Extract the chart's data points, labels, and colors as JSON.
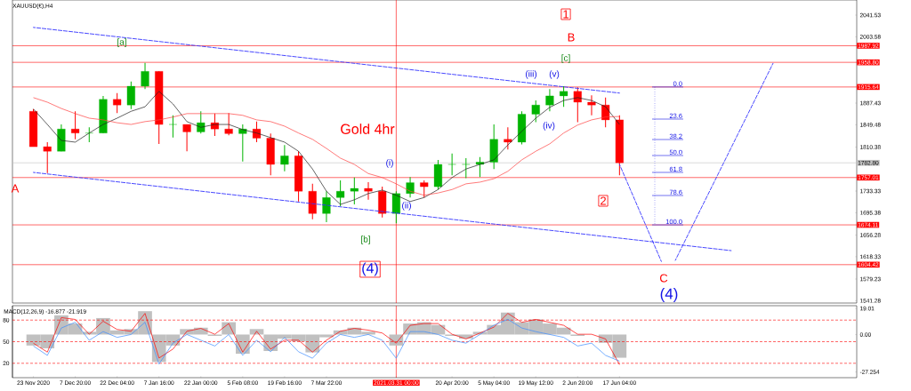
{
  "chart_data": [
    {
      "type": "candlestick",
      "title": "XAUUSD(€),H4",
      "categories": [
        "23 Nov 2020",
        null,
        null,
        "7 Dec 20:00",
        null,
        null,
        "22 Dec 04:00",
        null,
        null,
        "7 Jan 16:00",
        null,
        null,
        "22 Jan 00:00",
        null,
        null,
        "5 Feb 08:00",
        null,
        null,
        "19 Feb 16:00",
        null,
        null,
        "7 Mar 22:00",
        null,
        null,
        null,
        null,
        "2021.03.31 00:00",
        null,
        null,
        null,
        "20 Apr 20:00",
        null,
        null,
        "5 May 04:00",
        null,
        null,
        "19 May 12:00",
        null,
        null,
        "2 Jun 20:00",
        null,
        null,
        "17 Jun 04:00",
        null,
        null,
        null,
        null,
        null,
        null,
        null,
        null,
        null,
        null,
        null,
        null,
        null,
        null,
        null,
        null
      ],
      "ohlc": [
        [
          1873,
          1877,
          1811,
          1811
        ],
        [
          1811,
          1819,
          1765,
          1803
        ],
        [
          1803,
          1850,
          1803,
          1842
        ],
        [
          1842,
          1873,
          1824,
          1835
        ],
        [
          1835,
          1845,
          1819,
          1835
        ],
        [
          1835,
          1900,
          1835,
          1894
        ],
        [
          1894,
          1905,
          1870,
          1884
        ],
        [
          1884,
          1925,
          1877,
          1917
        ],
        [
          1917,
          1958,
          1912,
          1943
        ],
        [
          1943,
          1943,
          1816,
          1850
        ],
        [
          1850,
          1866,
          1827,
          1850
        ],
        [
          1850,
          1850,
          1803,
          1837
        ],
        [
          1837,
          1873,
          1834,
          1853
        ],
        [
          1853,
          1869,
          1830,
          1842
        ],
        [
          1842,
          1870,
          1831,
          1834
        ],
        [
          1834,
          1850,
          1785,
          1842
        ],
        [
          1842,
          1855,
          1819,
          1826
        ],
        [
          1826,
          1834,
          1761,
          1780
        ],
        [
          1780,
          1814,
          1768,
          1795
        ],
        [
          1795,
          1803,
          1715,
          1733
        ],
        [
          1733,
          1746,
          1684,
          1694
        ],
        [
          1694,
          1733,
          1679,
          1722
        ],
        [
          1722,
          1752,
          1707,
          1733
        ],
        [
          1733,
          1757,
          1710,
          1738
        ],
        [
          1738,
          1749,
          1718,
          1733
        ],
        [
          1733,
          1741,
          1687,
          1694
        ],
        [
          1694,
          1733,
          1677,
          1729
        ],
        [
          1729,
          1758,
          1722,
          1748
        ],
        [
          1748,
          1752,
          1722,
          1741
        ],
        [
          1741,
          1788,
          1736,
          1780
        ],
        [
          1780,
          1799,
          1761,
          1780
        ],
        [
          1780,
          1791,
          1756,
          1780
        ],
        [
          1780,
          1793,
          1758,
          1784
        ],
        [
          1784,
          1850,
          1772,
          1824
        ],
        [
          1824,
          1845,
          1806,
          1819
        ],
        [
          1819,
          1873,
          1815,
          1868
        ],
        [
          1868,
          1892,
          1854,
          1884
        ],
        [
          1884,
          1912,
          1873,
          1900
        ],
        [
          1900,
          1917,
          1881,
          1908
        ],
        [
          1908,
          1915,
          1854,
          1889
        ],
        [
          1889,
          1901,
          1866,
          1884
        ],
        [
          1884,
          1897,
          1845,
          1858
        ],
        [
          1858,
          1866,
          1761,
          1782.8
        ],
        null,
        null,
        null,
        null,
        null,
        null,
        null,
        null,
        null,
        null,
        null,
        null,
        null,
        null,
        null,
        null
      ],
      "series": [
        {
          "type": "line",
          "color": "#202020",
          "values": [
            1877,
            1850,
            1822,
            1819,
            1835,
            1850,
            1861,
            1873,
            1881,
            1908,
            1886,
            1855,
            1845,
            1850,
            1850,
            1841,
            1835,
            1827,
            1819,
            1803,
            1772,
            1733,
            1710,
            1718,
            1729,
            1735,
            1726,
            1715,
            1722,
            1736,
            1757,
            1772,
            1780,
            1788,
            1814,
            1838,
            1861,
            1880,
            1892,
            1897,
            1892,
            1881,
            1850,
            null,
            null,
            null,
            null,
            null,
            null,
            null,
            null,
            null,
            null,
            null,
            null,
            null,
            null,
            null,
            null
          ]
        },
        {
          "type": "line",
          "color": "#ff4040",
          "values": [
            1897,
            1889,
            1878,
            1869,
            1861,
            1858,
            1853,
            1850,
            1855,
            1858,
            1863,
            1869,
            1869,
            1869,
            1869,
            1866,
            1858,
            1855,
            1847,
            1835,
            1824,
            1808,
            1791,
            1780,
            1764,
            1757,
            1746,
            1733,
            1726,
            1730,
            1736,
            1746,
            1749,
            1755,
            1768,
            1788,
            1803,
            1816,
            1835,
            1849,
            1858,
            1863,
            1864,
            null,
            null,
            null,
            null,
            null,
            null,
            null,
            null,
            null,
            null,
            null,
            null,
            null,
            null,
            null,
            null
          ]
        },
        {
          "type": "line",
          "color": "#3333ff",
          "line_style": "dashed",
          "values": [
            2020,
            null,
            null,
            null,
            null,
            null,
            null,
            null,
            null,
            null,
            null,
            null,
            null,
            null,
            null,
            null,
            null,
            null,
            null,
            null,
            null,
            null,
            null,
            null,
            null,
            null,
            null,
            null,
            null,
            null,
            null,
            null,
            null,
            null,
            null,
            null,
            null,
            null,
            null,
            null,
            null,
            null,
            1905,
            null,
            null,
            null,
            null,
            null,
            null,
            null,
            null,
            null,
            null,
            null,
            null,
            null,
            null,
            null,
            null
          ]
        },
        {
          "type": "line",
          "color": "#3333ff",
          "line_style": "dashed",
          "values": [
            1766,
            null,
            null,
            null,
            null,
            null,
            null,
            null,
            null,
            null,
            null,
            null,
            null,
            null,
            null,
            null,
            null,
            null,
            null,
            null,
            null,
            null,
            null,
            null,
            null,
            null,
            null,
            null,
            null,
            null,
            null,
            null,
            null,
            null,
            null,
            null,
            null,
            null,
            null,
            null,
            null,
            null,
            null,
            null,
            null,
            null,
            null,
            null,
            null,
            null,
            1629,
            null,
            null,
            null,
            null,
            null,
            null,
            null,
            null
          ]
        },
        {
          "type": "line",
          "color": "#3333ff",
          "line_style": "dashed",
          "values": [
            null,
            null,
            null,
            null,
            null,
            null,
            null,
            null,
            null,
            null,
            null,
            null,
            null,
            null,
            null,
            null,
            null,
            null,
            null,
            null,
            null,
            null,
            null,
            null,
            null,
            null,
            null,
            null,
            null,
            null,
            null,
            null,
            null,
            null,
            null,
            null,
            null,
            null,
            null,
            null,
            null,
            null,
            1780,
            null,
            null,
            1610,
            null,
            null,
            null,
            null,
            null,
            null,
            null,
            null,
            null,
            null,
            null,
            null,
            null
          ]
        },
        {
          "type": "line",
          "color": "#3333ff",
          "line_style": "dashed",
          "values": [
            null,
            null,
            null,
            null,
            null,
            null,
            null,
            null,
            null,
            null,
            null,
            null,
            null,
            null,
            null,
            null,
            null,
            null,
            null,
            null,
            null,
            null,
            null,
            null,
            null,
            null,
            null,
            null,
            null,
            null,
            null,
            null,
            null,
            null,
            null,
            null,
            null,
            null,
            null,
            null,
            null,
            null,
            null,
            null,
            null,
            null,
            1612,
            null,
            null,
            null,
            null,
            null,
            null,
            1957,
            null,
            null,
            null,
            null,
            null
          ]
        }
      ],
      "ylim": [
        1537.2,
        2068.0
      ],
      "yticks": [
        2041.53,
        2003.58,
        1887.43,
        1849.48,
        1810.38,
        1733.33,
        1695.38,
        1656.28,
        1618.33,
        1579.23,
        1541.28
      ],
      "tick_labels": "y",
      "ref_lines": [
        {
          "axis": "y",
          "value": 1987.92,
          "label": "1987.92",
          "color": "#ff0000"
        },
        {
          "axis": "y",
          "value": 1958.8,
          "label": "1958.80",
          "color": "#ff0000"
        },
        {
          "axis": "y",
          "value": 1915.64,
          "label": "1915.64",
          "color": "#ff0000"
        },
        {
          "axis": "y",
          "value": 1782.8,
          "label": "1782.80",
          "color": "#c0c0c0"
        },
        {
          "axis": "y",
          "value": 1757.01,
          "label": "1757.01",
          "color": "#ff0000"
        },
        {
          "axis": "y",
          "value": 1674.11,
          "label": "1674.11",
          "color": "#ff0000"
        },
        {
          "axis": "y",
          "value": 1604.42,
          "label": "1604.42",
          "color": "#ff0000"
        },
        {
          "axis": "x",
          "value": "2021.03.31 00:00",
          "color": "#ff0000"
        }
      ],
      "annotations": [
        "[a]",
        "A",
        "Gold 4hr",
        "[b]",
        "(4)",
        "(i)",
        "(ii)",
        "(iii)",
        "(v)",
        "(iv)",
        "[c]",
        "B",
        "1",
        "2",
        "C",
        "(4)",
        {
          "text": "0.0",
          "y": 1915.64
        },
        "23.6",
        "38.2",
        "50.0",
        "61.8",
        "78.6",
        {
          "text": "100.0",
          "y": 1674.11
        }
      ]
    },
    {
      "type": "bar",
      "title": "MACD(12,26,9) -16.877 -21.919",
      "categories": [
        "23 Nov 2020",
        null,
        null,
        "7 Dec 20:00",
        null,
        null,
        "22 Dec 04:00",
        null,
        null,
        "7 Jan 16:00",
        null,
        null,
        "22 Jan 00:00",
        null,
        null,
        "5 Feb 08:00",
        null,
        null,
        "19 Feb 16:00",
        null,
        null,
        "7 Mar 22:00",
        null,
        null,
        null,
        null,
        "2021.03.31 00:00",
        null,
        null,
        null,
        "20 Apr 20:00",
        null,
        null,
        "5 May 04:00",
        null,
        null,
        "19 May 12:00",
        null,
        null,
        "2 Jun 20:00",
        null,
        null,
        "17 Jun 04:00",
        null,
        null,
        null,
        null,
        null,
        null,
        null,
        null,
        null,
        null,
        null,
        null,
        null,
        null,
        null,
        null
      ],
      "series": [
        {
          "type": "bar",
          "color": "#c0c0c0",
          "values": [
            -8,
            -10,
            14,
            8,
            2,
            12,
            3,
            4,
            17,
            -20,
            -8,
            4,
            5,
            -1,
            9,
            -14,
            4,
            -12,
            -3,
            -5,
            -13,
            -2,
            3,
            5,
            2,
            0,
            -8,
            8,
            9,
            7,
            -1,
            -3,
            2,
            7,
            16,
            9,
            11,
            8,
            5,
            -1,
            0,
            -6,
            -16.877,
            null,
            null,
            null,
            null,
            null,
            null,
            null,
            null,
            null,
            null,
            null,
            null,
            null,
            null,
            null,
            null
          ]
        },
        {
          "type": "line",
          "color": "#ff0000",
          "values": [
            -6.3,
            -12.8,
            12.3,
            11.0,
            0.2,
            9.7,
            3.7,
            2.4,
            15.4,
            -17.1,
            -10.6,
            2.4,
            4.5,
            0.2,
            8.0,
            -12.8,
            2.4,
            -10.6,
            -4.1,
            -4.1,
            -12.8,
            -4.1,
            2.4,
            4.5,
            3.2,
            1.1,
            -6.3,
            6.7,
            8.0,
            8.0,
            0.2,
            -3.2,
            1.1,
            5.4,
            15.4,
            8.9,
            11.0,
            8.9,
            6.7,
            0.2,
            0.2,
            -3.2,
            -21.919,
            null,
            null,
            null,
            null,
            null,
            null,
            null,
            null,
            null,
            null,
            null,
            null,
            null,
            null,
            null,
            null
          ]
        },
        {
          "type": "line",
          "color": "#3c8cff",
          "axis": "y2",
          "values": [
            44,
            31,
            69,
            77,
            52,
            64,
            56,
            60,
            77,
            19,
            48,
            60,
            52,
            44,
            60,
            31,
            52,
            36,
            56,
            36,
            27,
            48,
            60,
            56,
            60,
            52,
            27,
            64,
            64,
            60,
            52,
            48,
            60,
            73,
            81,
            69,
            64,
            60,
            56,
            44,
            48,
            31,
            23,
            null,
            null,
            null,
            null,
            null,
            null,
            null,
            null,
            null,
            null,
            null,
            null,
            null,
            null,
            null,
            null
          ]
        }
      ],
      "ylim": [
        -31.4,
        21.0
      ],
      "yticks": [
        19.01,
        {
          "value": 0,
          "label": "0.00"
        },
        -27.254
      ],
      "y2lim": [
        0,
        100
      ],
      "y2ticks": [
        80,
        50,
        20
      ],
      "ref_lines": [
        {
          "axis": "y2",
          "value": 80,
          "color": "#ff0000",
          "line_style": "dashed"
        },
        {
          "axis": "y2",
          "value": 50,
          "color": "#ff0000",
          "line_style": "dashed"
        },
        {
          "axis": "y2",
          "value": 20,
          "color": "#ff0000",
          "line_style": "dashed"
        },
        {
          "axis": "x",
          "value": "2021.03.31 00:00",
          "color": "#ff0000"
        }
      ]
    }
  ]
}
